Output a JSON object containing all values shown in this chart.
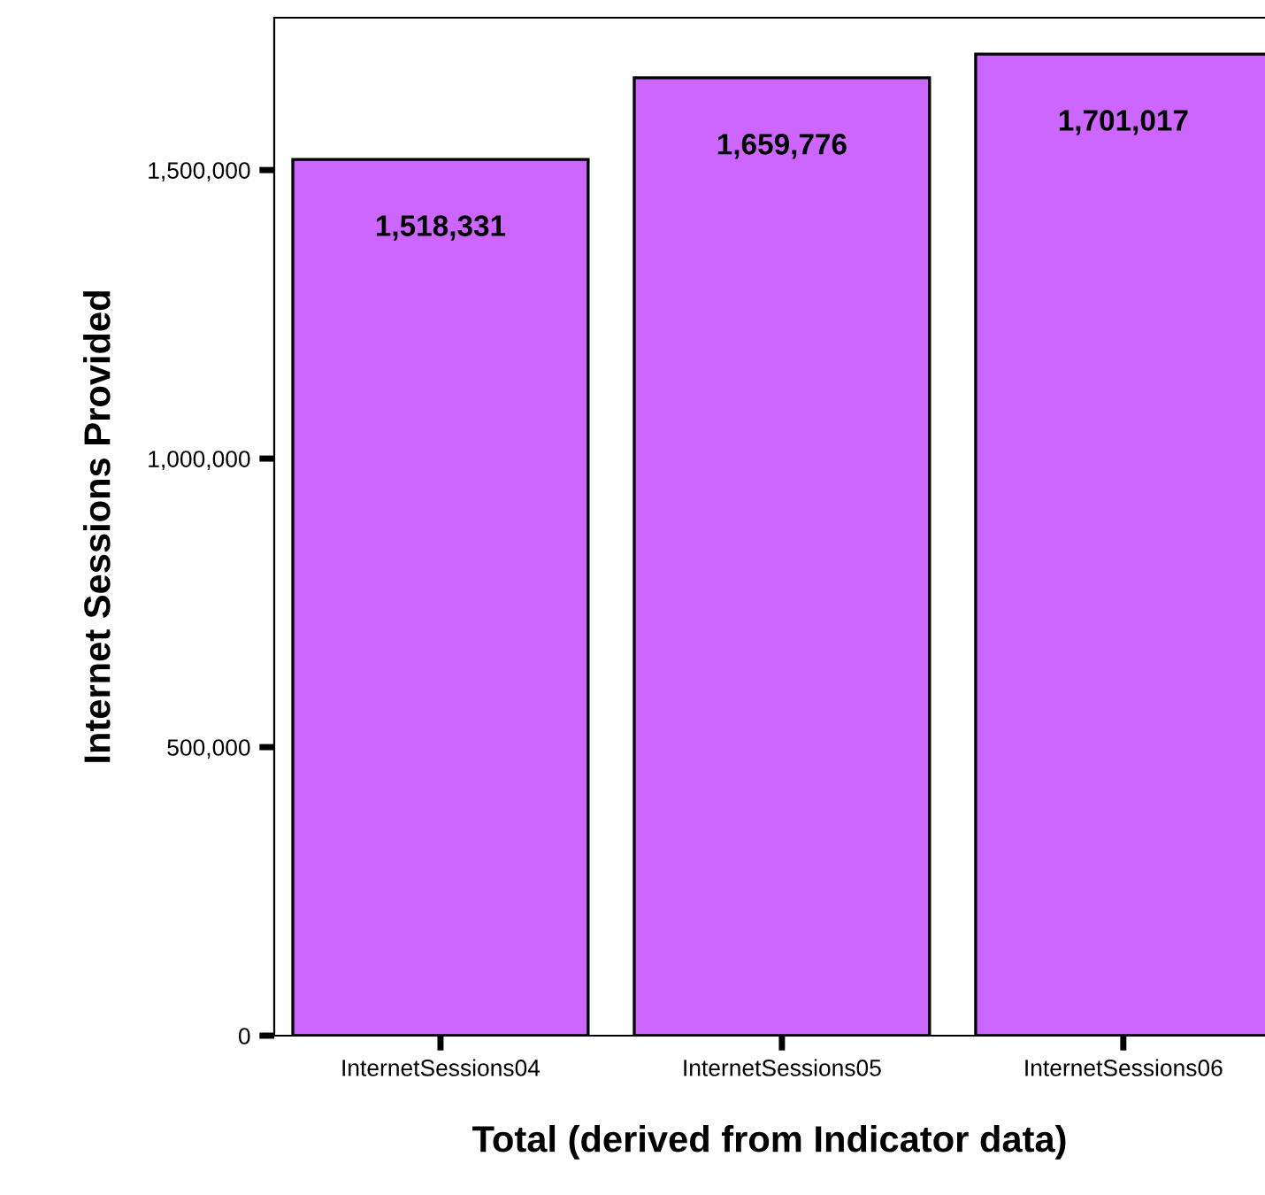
{
  "chart_data": {
    "type": "bar",
    "xlabel": "Total (derived from Indicator data)",
    "ylabel": "Internet Sessions Provided",
    "categories": [
      "InternetSessions04",
      "InternetSessions05",
      "InternetSessions06"
    ],
    "values": [
      1518331,
      1659776,
      1701017
    ],
    "color": "#cc66ff",
    "value_labels": [
      "1,518,331",
      "1,659,776",
      "1,701,017"
    ],
    "ylim": [
      0,
      1764000
    ],
    "yticks": [
      {
        "value": 0,
        "label": "0"
      },
      {
        "value": 500000,
        "label": "500,000"
      },
      {
        "value": 1000000,
        "label": "1,000,000"
      },
      {
        "value": 1500000,
        "label": "1,500,000"
      }
    ],
    "grid": false,
    "legend": false
  }
}
